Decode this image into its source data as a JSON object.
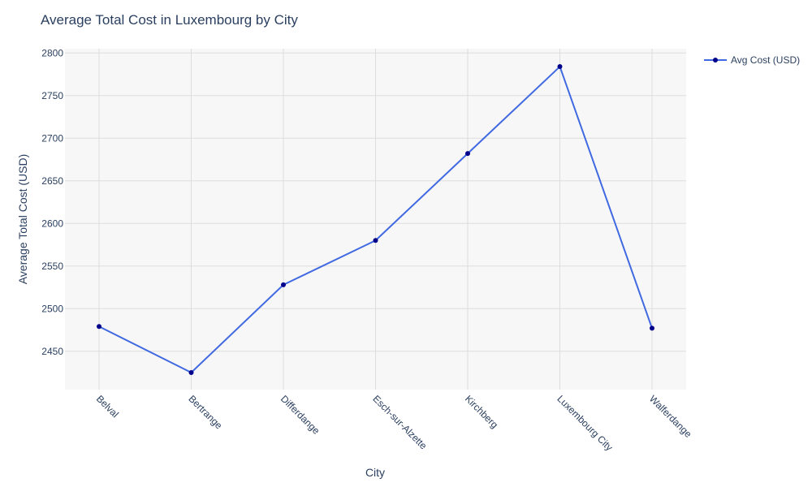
{
  "chart_data": {
    "type": "line",
    "title": "Average Total Cost in Luxembourg by City",
    "xlabel": "City",
    "ylabel": "Average Total Cost (USD)",
    "categories": [
      "Belval",
      "Bertrange",
      "Differdange",
      "Esch-sur-Alzette",
      "Kirchberg",
      "Luxembourg City",
      "Walferdange"
    ],
    "series": [
      {
        "name": "Avg Cost (USD)",
        "values": [
          2479,
          2425,
          2528,
          2580,
          2682,
          2784,
          2477
        ]
      }
    ],
    "ylim": [
      2405,
      2805
    ],
    "yticks": [
      2450,
      2500,
      2550,
      2600,
      2650,
      2700,
      2750,
      2800
    ],
    "grid": true,
    "legend_position": "top-right",
    "colors": {
      "line": "#4169e1",
      "marker": "#00008b",
      "plot_background": "#f7f7f7",
      "grid": "#dddddd"
    }
  }
}
